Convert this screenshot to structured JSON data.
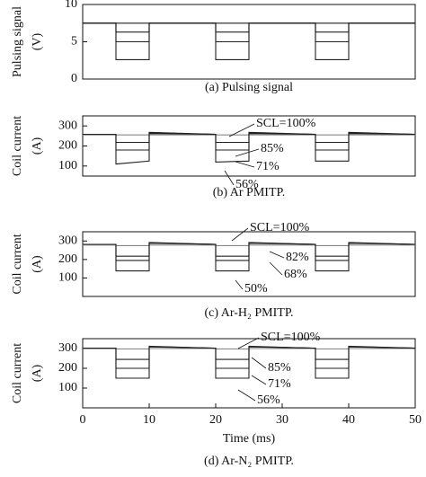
{
  "chart_data": [
    {
      "type": "line",
      "ylabel": "Pulsing signal",
      "yunit": "(V)",
      "caption": "(a) Pulsing signal",
      "xlim": [
        0,
        50
      ],
      "ylim": [
        0,
        10
      ],
      "yticks": [
        0,
        5,
        10
      ],
      "x": [
        0,
        5,
        5,
        10,
        10,
        20,
        20,
        25,
        25,
        35,
        35,
        40,
        40,
        50
      ],
      "series": [
        {
          "color": "#222222",
          "values": [
            7.5,
            7.5,
            7.5,
            7.5,
            7.5,
            7.5,
            7.5,
            7.5,
            7.5,
            7.5,
            7.5,
            7.5,
            7.5,
            7.5
          ]
        },
        {
          "color": "#222222",
          "values": [
            7.5,
            7.5,
            6.3,
            6.3,
            7.5,
            7.5,
            6.3,
            6.3,
            7.5,
            7.5,
            6.3,
            6.3,
            7.5,
            7.5
          ]
        },
        {
          "color": "#222222",
          "values": [
            7.5,
            7.5,
            5.0,
            5.0,
            7.5,
            7.5,
            5.0,
            5.0,
            7.5,
            7.5,
            5.0,
            5.0,
            7.5,
            7.5
          ]
        },
        {
          "color": "#222222",
          "values": [
            7.5,
            7.5,
            2.6,
            2.6,
            7.5,
            7.5,
            2.6,
            2.6,
            7.5,
            7.5,
            2.6,
            2.6,
            7.5,
            7.5
          ]
        }
      ]
    },
    {
      "type": "line",
      "ylabel": "Coil current",
      "yunit": "(A)",
      "caption": "(b) Ar PMITP.",
      "xlim": [
        0,
        50
      ],
      "ylim": [
        50,
        350
      ],
      "yticks": [
        100,
        200,
        300
      ],
      "x": [
        0,
        5,
        5,
        10,
        10,
        20,
        20,
        25,
        25,
        35,
        35,
        40,
        40,
        50
      ],
      "series": [
        {
          "name": "SCL=100%",
          "color": "#888888",
          "values": [
            255,
            255,
            255,
            255,
            255,
            255,
            255,
            255,
            255,
            255,
            255,
            255,
            255,
            255
          ]
        },
        {
          "name": "85%",
          "color": "#222222",
          "values": [
            258,
            258,
            218,
            218,
            262,
            258,
            218,
            218,
            262,
            258,
            218,
            218,
            262,
            258
          ]
        },
        {
          "name": "71%",
          "color": "#222222",
          "values": [
            258,
            258,
            180,
            180,
            265,
            258,
            180,
            180,
            265,
            258,
            180,
            180,
            265,
            258
          ]
        },
        {
          "name": "56%",
          "color": "#222222",
          "values": [
            258,
            258,
            110,
            125,
            268,
            258,
            120,
            125,
            268,
            258,
            125,
            125,
            268,
            258
          ]
        }
      ]
    },
    {
      "type": "line",
      "ylabel": "Coil current",
      "yunit": "(A)",
      "caption": "(c) Ar-H₂ PMITP.",
      "xlim": [
        0,
        50
      ],
      "ylim": [
        0,
        350
      ],
      "yticks": [
        100,
        200,
        300
      ],
      "x": [
        0,
        5,
        5,
        10,
        10,
        20,
        20,
        25,
        25,
        35,
        35,
        40,
        40,
        50
      ],
      "series": [
        {
          "name": "SCL=100%",
          "color": "#888888",
          "values": [
            278,
            278,
            275,
            275,
            278,
            278,
            275,
            275,
            278,
            278,
            275,
            275,
            278,
            278
          ]
        },
        {
          "name": "82%",
          "color": "#222222",
          "values": [
            282,
            282,
            218,
            218,
            288,
            282,
            218,
            218,
            288,
            282,
            218,
            218,
            288,
            282
          ]
        },
        {
          "name": "68%",
          "color": "#222222",
          "values": [
            282,
            282,
            195,
            195,
            290,
            282,
            195,
            195,
            290,
            282,
            195,
            195,
            290,
            282
          ]
        },
        {
          "name": "50%",
          "color": "#222222",
          "values": [
            282,
            282,
            138,
            138,
            292,
            282,
            138,
            138,
            292,
            282,
            138,
            138,
            292,
            282
          ]
        }
      ]
    },
    {
      "type": "line",
      "ylabel": "Coil current",
      "yunit": "(A)",
      "caption": "(d) Ar-N₂ PMITP.",
      "xlabel": "Time (ms)",
      "xlim": [
        0,
        50
      ],
      "ylim": [
        0,
        350
      ],
      "yticks": [
        100,
        200,
        300
      ],
      "xticks": [
        0,
        10,
        20,
        30,
        40,
        50
      ],
      "x": [
        0,
        5,
        5,
        10,
        10,
        20,
        20,
        25,
        25,
        35,
        35,
        40,
        40,
        50
      ],
      "series": [
        {
          "name": "SCL=100%",
          "color": "#888888",
          "values": [
            300,
            300,
            298,
            298,
            300,
            300,
            298,
            298,
            300,
            300,
            298,
            298,
            300,
            300
          ]
        },
        {
          "name": "85%",
          "color": "#222222",
          "values": [
            302,
            302,
            245,
            245,
            308,
            302,
            245,
            245,
            308,
            302,
            245,
            245,
            308,
            302
          ]
        },
        {
          "name": "71%",
          "color": "#222222",
          "values": [
            302,
            302,
            200,
            200,
            310,
            302,
            200,
            200,
            310,
            302,
            200,
            200,
            310,
            302
          ]
        },
        {
          "name": "56%",
          "color": "#222222",
          "values": [
            302,
            302,
            150,
            150,
            312,
            302,
            150,
            150,
            312,
            302,
            150,
            150,
            312,
            302
          ]
        }
      ]
    }
  ]
}
